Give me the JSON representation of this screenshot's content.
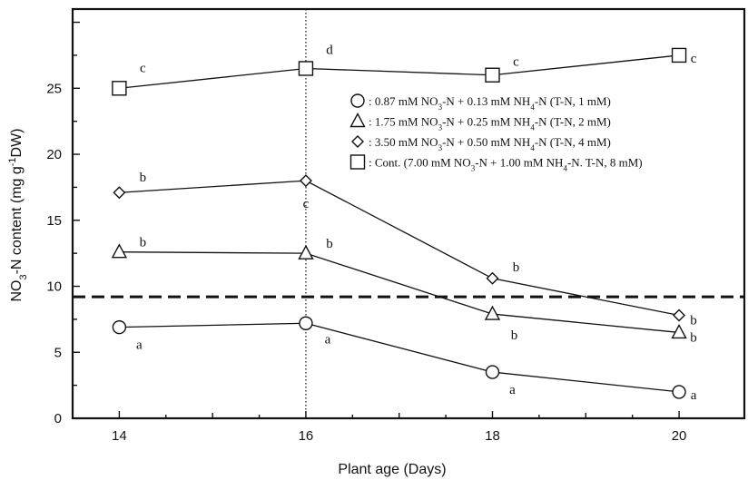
{
  "chart_data": {
    "type": "line",
    "x": [
      14,
      16,
      18,
      20
    ],
    "xlabel": "Plant age (Days)",
    "ylabel_main": "NO",
    "ylabel_sub": "3",
    "ylabel_rest": "-N content (mg g",
    "ylabel_sup": "-1",
    "ylabel_end": "DW)",
    "xlim": [
      13.5,
      20.7
    ],
    "ylim": [
      0,
      31
    ],
    "x_ticks": [
      14,
      16,
      18,
      20
    ],
    "x_tick_labels": [
      "14",
      "16",
      "18",
      "20"
    ],
    "y_ticks": [
      0,
      5,
      10,
      15,
      20,
      25
    ],
    "y_tick_labels": [
      "0",
      "5",
      "10",
      "15",
      "20",
      "25"
    ],
    "grid": false,
    "reference_hline": 9.2,
    "reference_vline": 16,
    "legend_position": "top-right",
    "series": [
      {
        "key": "1mM",
        "marker": "circle",
        "legend": [
          {
            "t": "0.87 mM NO"
          },
          {
            "t": "3",
            "sub": true
          },
          {
            "t": "-N + 0.13 mM NH"
          },
          {
            "t": "4",
            "sub": true
          },
          {
            "t": "-N (T-N, 1 mM)"
          }
        ],
        "values": [
          6.9,
          7.2,
          3.5,
          2.0
        ],
        "letters": [
          "a",
          "a",
          "a",
          "a"
        ]
      },
      {
        "key": "2mM",
        "marker": "triangle",
        "legend": [
          {
            "t": "1.75 mM NO"
          },
          {
            "t": "3",
            "sub": true
          },
          {
            "t": "-N + 0.25 mM NH"
          },
          {
            "t": "4",
            "sub": true
          },
          {
            "t": "-N (T-N, 2 mM)"
          }
        ],
        "values": [
          12.6,
          12.5,
          7.9,
          6.5
        ],
        "letters": [
          "b",
          "b",
          "b",
          "b"
        ]
      },
      {
        "key": "4mM",
        "marker": "diamond",
        "legend": [
          {
            "t": "3.50 mM NO"
          },
          {
            "t": "3",
            "sub": true
          },
          {
            "t": "-N + 0.50 mM NH"
          },
          {
            "t": "4",
            "sub": true
          },
          {
            "t": "-N (T-N, 4 mM)"
          }
        ],
        "values": [
          17.1,
          18.0,
          10.6,
          7.8
        ],
        "letters": [
          "b",
          "c",
          "b",
          "b"
        ]
      },
      {
        "key": "8mM",
        "marker": "square",
        "legend": [
          {
            "t": "Cont. (7.00 mM NO"
          },
          {
            "t": "3",
            "sub": true
          },
          {
            "t": "-N + 1.00 mM NH"
          },
          {
            "t": "4",
            "sub": true
          },
          {
            "t": "-N. T-N, 8 mM)"
          }
        ],
        "values": [
          25.0,
          26.5,
          26.0,
          27.5
        ],
        "letters": [
          "c",
          "d",
          "c",
          "c"
        ]
      }
    ],
    "legend_separator": " : "
  }
}
